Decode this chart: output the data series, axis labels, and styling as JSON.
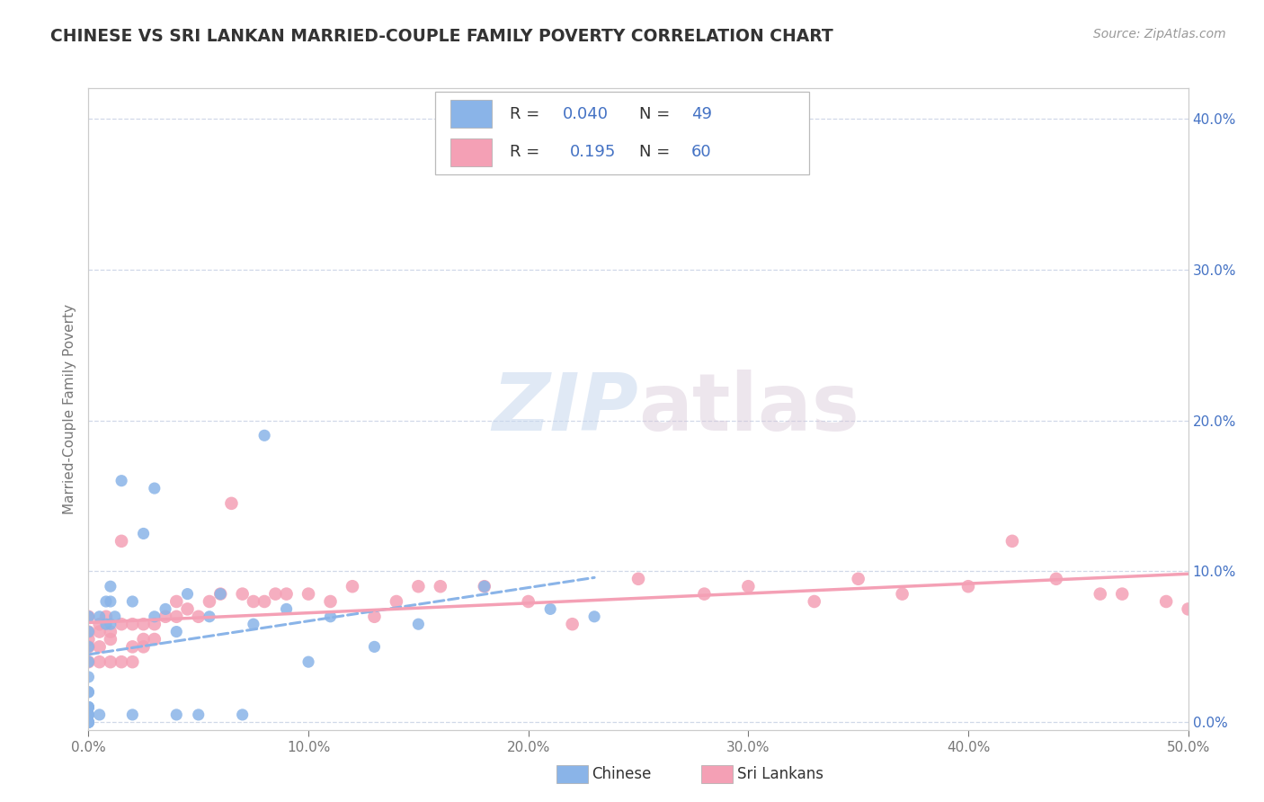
{
  "title": "CHINESE VS SRI LANKAN MARRIED-COUPLE FAMILY POVERTY CORRELATION CHART",
  "source": "Source: ZipAtlas.com",
  "ylabel": "Married-Couple Family Poverty",
  "xlim": [
    0,
    0.5
  ],
  "ylim": [
    -0.005,
    0.42
  ],
  "xticks": [
    0.0,
    0.1,
    0.2,
    0.3,
    0.4,
    0.5
  ],
  "yticks_right": [
    0.0,
    0.1,
    0.2,
    0.3,
    0.4
  ],
  "chinese_color": "#8ab4e8",
  "srilankan_color": "#f4a0b5",
  "chinese_R": 0.04,
  "chinese_N": 49,
  "srilankan_R": 0.195,
  "srilankan_N": 60,
  "watermark": "ZIPatlas",
  "background_color": "#ffffff",
  "grid_color": "#d0d8e8",
  "chinese_x": [
    0.0,
    0.0,
    0.0,
    0.0,
    0.0,
    0.0,
    0.0,
    0.0,
    0.0,
    0.0,
    0.0,
    0.0,
    0.0,
    0.0,
    0.0,
    0.0,
    0.0,
    0.005,
    0.005,
    0.008,
    0.008,
    0.01,
    0.01,
    0.01,
    0.012,
    0.015,
    0.02,
    0.02,
    0.025,
    0.03,
    0.03,
    0.035,
    0.04,
    0.04,
    0.045,
    0.05,
    0.055,
    0.06,
    0.07,
    0.075,
    0.08,
    0.09,
    0.1,
    0.11,
    0.13,
    0.15,
    0.18,
    0.21,
    0.23
  ],
  "chinese_y": [
    0.0,
    0.0,
    0.0,
    0.0,
    0.005,
    0.005,
    0.005,
    0.01,
    0.01,
    0.01,
    0.02,
    0.02,
    0.03,
    0.04,
    0.05,
    0.06,
    0.07,
    0.005,
    0.07,
    0.08,
    0.065,
    0.065,
    0.08,
    0.09,
    0.07,
    0.16,
    0.005,
    0.08,
    0.125,
    0.07,
    0.155,
    0.075,
    0.005,
    0.06,
    0.085,
    0.005,
    0.07,
    0.085,
    0.005,
    0.065,
    0.19,
    0.075,
    0.04,
    0.07,
    0.05,
    0.065,
    0.09,
    0.075,
    0.07
  ],
  "srilankan_x": [
    0.0,
    0.0,
    0.0,
    0.0,
    0.0,
    0.005,
    0.005,
    0.005,
    0.005,
    0.008,
    0.01,
    0.01,
    0.01,
    0.015,
    0.015,
    0.015,
    0.02,
    0.02,
    0.02,
    0.025,
    0.025,
    0.025,
    0.03,
    0.03,
    0.035,
    0.04,
    0.04,
    0.045,
    0.05,
    0.055,
    0.06,
    0.065,
    0.07,
    0.075,
    0.08,
    0.085,
    0.09,
    0.1,
    0.11,
    0.12,
    0.13,
    0.14,
    0.15,
    0.16,
    0.18,
    0.2,
    0.22,
    0.25,
    0.28,
    0.3,
    0.33,
    0.35,
    0.37,
    0.4,
    0.42,
    0.44,
    0.46,
    0.47,
    0.49,
    0.5
  ],
  "srilankan_y": [
    0.04,
    0.05,
    0.055,
    0.06,
    0.07,
    0.04,
    0.05,
    0.06,
    0.065,
    0.07,
    0.04,
    0.055,
    0.06,
    0.04,
    0.065,
    0.12,
    0.04,
    0.05,
    0.065,
    0.05,
    0.055,
    0.065,
    0.055,
    0.065,
    0.07,
    0.07,
    0.08,
    0.075,
    0.07,
    0.08,
    0.085,
    0.145,
    0.085,
    0.08,
    0.08,
    0.085,
    0.085,
    0.085,
    0.08,
    0.09,
    0.07,
    0.08,
    0.09,
    0.09,
    0.09,
    0.08,
    0.065,
    0.095,
    0.085,
    0.09,
    0.08,
    0.095,
    0.085,
    0.09,
    0.12,
    0.095,
    0.085,
    0.085,
    0.08,
    0.075
  ]
}
